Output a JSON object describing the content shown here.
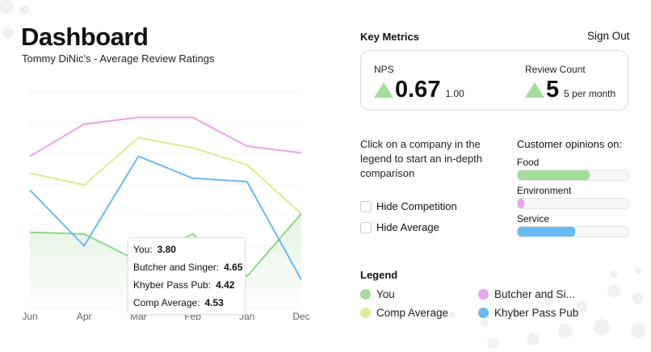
{
  "header": {
    "title": "Dashboard",
    "subtitle": "Tommy DiNic's - Average Review Ratings"
  },
  "chart_data": {
    "type": "line",
    "categories": [
      "Jun",
      "Apr",
      "Mar",
      "Feb",
      "Jan",
      "Dec"
    ],
    "ylim": [
      3.52,
      4.8
    ],
    "grid": true,
    "series": [
      {
        "name": "You",
        "color": "#8fd48a",
        "fill": true,
        "values": [
          3.97,
          3.96,
          3.8,
          3.96,
          3.71,
          4.08
        ]
      },
      {
        "name": "Butcher and Singer",
        "color": "#e9a2ec",
        "values": [
          4.42,
          4.61,
          4.65,
          4.65,
          4.48,
          4.44
        ]
      },
      {
        "name": "Khyber Pass Pub",
        "color": "#6bb8f3",
        "values": [
          4.22,
          3.89,
          4.42,
          4.29,
          4.27,
          3.69
        ]
      },
      {
        "name": "Comp Average",
        "color": "#dcec8e",
        "values": [
          4.32,
          4.25,
          4.53,
          4.47,
          4.37,
          4.08
        ]
      }
    ]
  },
  "tooltip": {
    "rows": [
      {
        "label": "You:",
        "value": "3.80"
      },
      {
        "label": "Butcher and Singer:",
        "value": "4.65"
      },
      {
        "label": "Khyber Pass Pub:",
        "value": "4.42"
      },
      {
        "label": "Comp Average:",
        "value": "4.53"
      }
    ]
  },
  "metrics": {
    "title": "Key Metrics",
    "sign_out": "Sign Out",
    "nps": {
      "label": "NPS",
      "value": "0.67",
      "sub": "1.00",
      "trend": "up"
    },
    "reviews": {
      "label": "Review Count",
      "value": "5",
      "sub": "5 per month",
      "trend": "up"
    }
  },
  "help_text": "Click on a company in the legend to start an in-depth comparison",
  "checkboxes": [
    {
      "label": "Hide Competition",
      "checked": false
    },
    {
      "label": "Hide Average",
      "checked": false
    }
  ],
  "opinions": {
    "title": "Customer opinions on:",
    "items": [
      {
        "label": "Food",
        "percent": 65,
        "color": "#a4dc9c"
      },
      {
        "label": "Environment",
        "percent": 5,
        "color": "#e9a2ec"
      },
      {
        "label": "Service",
        "percent": 52,
        "color": "#6bb8f3"
      }
    ]
  },
  "legend": {
    "title": "Legend",
    "items": [
      {
        "label": "You",
        "color": "#a4dc9c"
      },
      {
        "label": "Butcher and Si...",
        "color": "#e9a2ec"
      },
      {
        "label": "Comp Average",
        "color": "#e1ec96"
      },
      {
        "label": "Khyber Pass Pub",
        "color": "#6bb8f3"
      }
    ]
  }
}
